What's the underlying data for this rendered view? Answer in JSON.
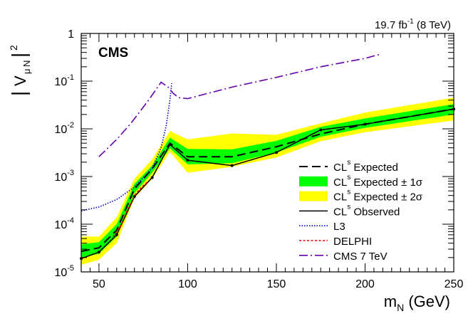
{
  "chart_data": {
    "type": "line",
    "title": "",
    "experiment_label": "CMS",
    "luminosity_label": {
      "base": "19.7 fb",
      "exp": "-1",
      "rest": " (8 TeV)"
    },
    "xlabel": {
      "base": "m",
      "sub": "N",
      "rest": " (GeV)"
    },
    "ylabel": {
      "bar": "|",
      "base": "V",
      "sub1": "μ",
      "sub2": "N",
      "bar2": "|",
      "sup": "2"
    },
    "xlim": [
      40,
      250
    ],
    "ylim": [
      1e-05,
      1
    ],
    "yscale": "log",
    "x_ticks": [
      50,
      100,
      150,
      200,
      250
    ],
    "x_tick_labels": [
      "50",
      "100",
      "150",
      "200",
      "250"
    ],
    "y_ticks": [
      {
        "value": 1e-05,
        "base": "10",
        "exp": "-5"
      },
      {
        "value": 0.0001,
        "base": "10",
        "exp": "-4"
      },
      {
        "value": 0.001,
        "base": "10",
        "exp": "-3"
      },
      {
        "value": 0.01,
        "base": "10",
        "exp": "-2"
      },
      {
        "value": 0.1,
        "base": "10",
        "exp": "-1"
      },
      {
        "value": 1,
        "base": "1",
        "exp": ""
      }
    ],
    "colors": {
      "band2": "#ffff00",
      "band1": "#00ff00",
      "expected": "#000000",
      "observed": "#000000",
      "l3": "#0000cc",
      "delphi": "#ff0000",
      "cms7": "#6600aa"
    },
    "band2": {
      "x": [
        40,
        50,
        60,
        70,
        80,
        90,
        100,
        125,
        150,
        175,
        200,
        250
      ],
      "low": [
        1.4e-05,
        1.8e-05,
        4e-05,
        0.00035,
        0.0009,
        0.0033,
        0.0012,
        0.0016,
        0.0025,
        0.0055,
        0.0085,
        0.015
      ],
      "high": [
        5.5e-05,
        5.5e-05,
        0.00014,
        0.0009,
        0.0023,
        0.009,
        0.006,
        0.008,
        0.0075,
        0.013,
        0.022,
        0.045
      ]
    },
    "band1": {
      "x": [
        40,
        50,
        60,
        70,
        80,
        90,
        100,
        125,
        150,
        175,
        200,
        250
      ],
      "low": [
        2e-05,
        2.4e-05,
        5.5e-05,
        0.00045,
        0.0012,
        0.0039,
        0.0018,
        0.0019,
        0.0032,
        0.0068,
        0.0105,
        0.02
      ],
      "high": [
        3.8e-05,
        4.2e-05,
        0.0001,
        0.0007,
        0.0017,
        0.0065,
        0.0038,
        0.0037,
        0.0056,
        0.011,
        0.0165,
        0.033
      ]
    },
    "series": [
      {
        "name": "expected",
        "x": [
          40,
          50,
          60,
          70,
          80,
          90,
          100,
          125,
          150,
          175,
          200,
          250
        ],
        "values": [
          2.7e-05,
          3.2e-05,
          7.5e-05,
          0.00055,
          0.00145,
          0.005,
          0.0026,
          0.0026,
          0.0042,
          0.0078,
          0.0125,
          0.026
        ]
      },
      {
        "name": "observed",
        "x": [
          40,
          50,
          60,
          70,
          80,
          90,
          100,
          125,
          150,
          175,
          200,
          250
        ],
        "values": [
          1.9e-05,
          2.6e-05,
          6e-05,
          0.00038,
          0.00095,
          0.0047,
          0.0022,
          0.0017,
          0.0032,
          0.0095,
          0.0125,
          0.026
        ]
      },
      {
        "name": "l3",
        "x": [
          40,
          50,
          60,
          70,
          80,
          85,
          88,
          90,
          91
        ],
        "values": [
          0.00019,
          0.00023,
          0.00033,
          0.0006,
          0.0015,
          0.004,
          0.012,
          0.04,
          0.09
        ]
      },
      {
        "name": "delphi",
        "x": [
          58,
          62,
          66,
          70,
          74,
          78
        ],
        "values": [
          5.5e-05,
          9e-05,
          0.0002,
          0.0004,
          0.0006,
          0.0008
        ]
      },
      {
        "name": "cms7",
        "x": [
          50,
          60,
          68,
          78,
          85,
          89,
          92,
          95,
          100,
          125,
          150,
          175,
          200,
          209
        ],
        "values": [
          0.0026,
          0.006,
          0.013,
          0.04,
          0.095,
          0.075,
          0.055,
          0.045,
          0.043,
          0.075,
          0.12,
          0.2,
          0.3,
          0.37
        ]
      }
    ],
    "legend": [
      {
        "key": "expected",
        "main": "CL",
        "sub": "s",
        "rest": " Expected"
      },
      {
        "key": "band1",
        "main": "CL",
        "sub": "s",
        "rest": " Expected ± 1σ"
      },
      {
        "key": "band2",
        "main": "CL",
        "sub": "s",
        "rest": " Expected ± 2σ"
      },
      {
        "key": "observed",
        "main": "CL",
        "sub": "s",
        "rest": " Observed"
      },
      {
        "key": "l3",
        "main": "L3",
        "sub": "",
        "rest": ""
      },
      {
        "key": "delphi",
        "main": "DELPHI",
        "sub": "",
        "rest": ""
      },
      {
        "key": "cms7",
        "main": "CMS 7 TeV",
        "sub": "",
        "rest": ""
      }
    ],
    "legend_placement": "bottom-right"
  }
}
